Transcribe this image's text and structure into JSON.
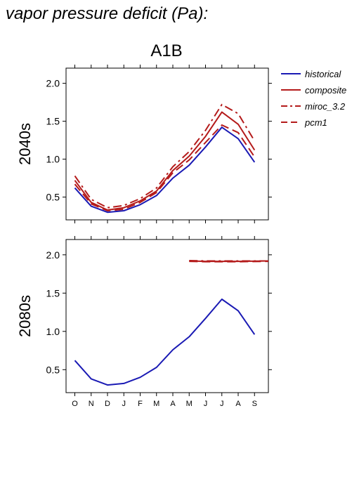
{
  "figure": {
    "title": "vapor pressure deficit (Pa):",
    "scenario": "A1B"
  },
  "colors": {
    "historical": "#1a1ab4",
    "projection": "#b41a1a"
  },
  "chart_data": [
    {
      "type": "line",
      "panel_label": "2040s",
      "categories": [
        "O",
        "N",
        "D",
        "J",
        "F",
        "M",
        "A",
        "M",
        "J",
        "J",
        "A",
        "S"
      ],
      "ylim": [
        0.2,
        2.2
      ],
      "yticks": [
        "0.5",
        "1.0",
        "1.5",
        "2.0"
      ],
      "legend_position": "right",
      "series": [
        {
          "name": "historical",
          "style": "solid",
          "color": "#1a1ab4",
          "values": [
            0.62,
            0.38,
            0.3,
            0.32,
            0.4,
            0.52,
            0.75,
            0.92,
            1.16,
            1.42,
            1.27,
            0.96
          ]
        },
        {
          "name": "composite",
          "style": "solid",
          "color": "#b41a1a",
          "values": [
            0.72,
            0.43,
            0.33,
            0.36,
            0.45,
            0.58,
            0.85,
            1.04,
            1.3,
            1.62,
            1.46,
            1.12
          ]
        },
        {
          "name": "miroc_3.2",
          "style": "dashdot",
          "color": "#b41a1a",
          "values": [
            0.78,
            0.47,
            0.36,
            0.39,
            0.48,
            0.62,
            0.9,
            1.1,
            1.38,
            1.72,
            1.6,
            1.24
          ]
        },
        {
          "name": "pcm1",
          "style": "dashed",
          "color": "#b41a1a",
          "values": [
            0.67,
            0.41,
            0.32,
            0.34,
            0.43,
            0.56,
            0.82,
            0.99,
            1.22,
            1.45,
            1.35,
            1.03
          ]
        }
      ]
    },
    {
      "type": "line",
      "panel_label": "2080s",
      "categories": [
        "O",
        "N",
        "D",
        "J",
        "F",
        "M",
        "A",
        "M",
        "J",
        "J",
        "A",
        "S"
      ],
      "ylim": [
        0.2,
        2.2
      ],
      "yticks": [
        "0.5",
        "1.0",
        "1.5",
        "2.0"
      ],
      "series": [
        {
          "name": "historical",
          "style": "solid",
          "color": "#1a1ab4",
          "values": [
            0.62,
            0.38,
            0.3,
            0.32,
            0.4,
            0.53,
            0.76,
            0.93,
            1.17,
            1.42,
            1.27,
            0.96
          ]
        },
        {
          "name": "composite",
          "style": "solid",
          "color": "#b41a1a",
          "values": [
            null,
            null,
            null,
            null,
            null,
            null,
            null,
            1.92,
            1.915,
            1.915,
            1.915,
            1.92
          ]
        },
        {
          "name": "miroc_3.2",
          "style": "dashdot",
          "color": "#b41a1a",
          "values": [
            null,
            null,
            null,
            null,
            null,
            null,
            null,
            1.925,
            1.92,
            1.92,
            1.92,
            1.92
          ]
        },
        {
          "name": "pcm1",
          "style": "dashed",
          "color": "#b41a1a",
          "values": [
            null,
            null,
            null,
            null,
            null,
            null,
            null,
            1.915,
            1.91,
            1.91,
            1.91,
            1.915
          ]
        }
      ]
    }
  ]
}
